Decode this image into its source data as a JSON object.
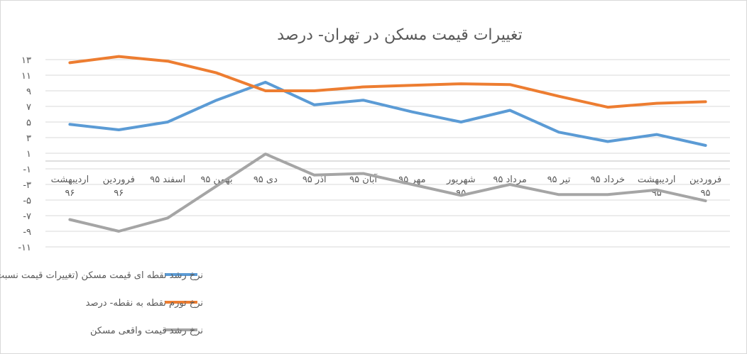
{
  "chart_data": {
    "type": "line",
    "title": "تغییرات قیمت مسکن در تهران- درصد",
    "x_axis_crosses_y": 0,
    "ylim": [
      -11,
      13
    ],
    "yticks": [
      13,
      11,
      9,
      7,
      5,
      3,
      1,
      -1,
      -3,
      -5,
      -7,
      -9,
      -11
    ],
    "ytick_labels": [
      "۱۳",
      "۱۱",
      "۹",
      "۷",
      "۵",
      "۳",
      "۱",
      "-۱",
      "-۳",
      "-۵",
      "-۷",
      "-۹",
      "-۱۱"
    ],
    "categories": [
      [
        "فروردین",
        "۹۵"
      ],
      [
        "اردیبهشت",
        "۹۵"
      ],
      [
        "خرداد ۹۵"
      ],
      [
        "تیر ۹۵"
      ],
      [
        "مرداد ۹۵"
      ],
      [
        "شهریور",
        "۹۵"
      ],
      [
        "مهر ۹۵"
      ],
      [
        "آبان ۹۵"
      ],
      [
        "آذر ۹۵"
      ],
      [
        "دی ۹۵"
      ],
      [
        "بهمن ۹۵"
      ],
      [
        "اسفند ۹۵"
      ],
      [
        "فروردین",
        "۹۶"
      ],
      [
        "اردیبهشت",
        "۹۶"
      ]
    ],
    "gridlines": true,
    "legend_position": "bottom-left",
    "series": [
      {
        "name": "نرخ رشد نقطه ای قیمت مسکن (تغییرات قیمت نسبت به ماه مشابه سال قبل)- درصد",
        "color": "#5b9bd5",
        "values": [
          2.0,
          3.4,
          2.5,
          3.7,
          6.5,
          5.0,
          6.3,
          7.8,
          7.2,
          10.1,
          7.8,
          5.0,
          4.0,
          4.7
        ]
      },
      {
        "name": "نرخ تورم نقطه به نقطه- درصد",
        "color": "#ed7d31",
        "values": [
          7.6,
          7.4,
          6.9,
          8.3,
          9.8,
          9.9,
          9.7,
          9.5,
          9.0,
          9.0,
          11.3,
          12.8,
          13.4,
          12.6
        ]
      },
      {
        "name": "نرخ رشد قیمت واقعی مسکن",
        "color": "#a5a5a5",
        "values": [
          -5.1,
          -3.7,
          -4.3,
          -4.3,
          -3.0,
          -4.4,
          -3.0,
          -1.6,
          -1.8,
          0.9,
          -3.2,
          -7.3,
          -9.0,
          -7.5
        ]
      }
    ]
  }
}
